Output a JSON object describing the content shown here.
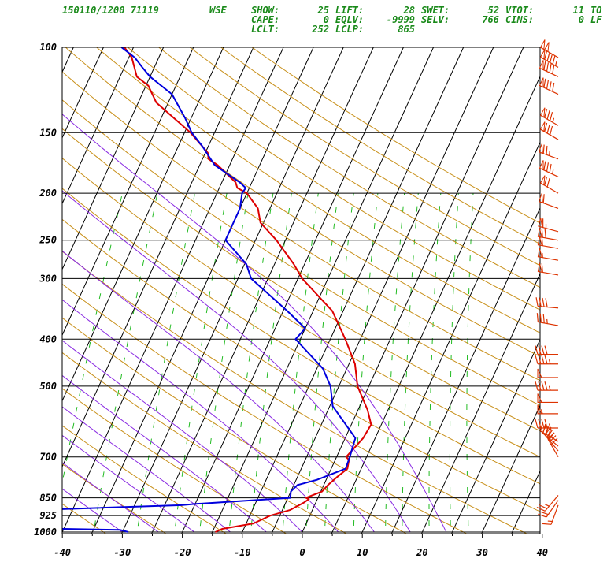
{
  "header": {
    "station_line": "150110/1200 71119",
    "station_id": "WSE",
    "indices": [
      [
        "SHOW:",
        "25",
        "LIFT:",
        "28",
        "SWET:",
        "52",
        "VTOT:",
        "11",
        "TO"
      ],
      [
        "CAPE:",
        "0",
        "EQLV:",
        "-9999",
        "SELV:",
        "766",
        "CINS:",
        "0",
        "LF"
      ],
      [
        "LCLT:",
        "252",
        "LCLP:",
        "865",
        "",
        "",
        "",
        "",
        ""
      ]
    ]
  },
  "chart_data": {
    "type": "line",
    "subtype": "skew-T log-P sounding",
    "pressure_ticks": [
      100,
      150,
      200,
      250,
      300,
      400,
      500,
      700,
      850,
      925,
      1000
    ],
    "temperature_ticks": [
      -40,
      -30,
      -20,
      -10,
      0,
      10,
      20,
      30,
      40
    ],
    "xlim": [
      -40,
      40
    ],
    "ylim": [
      1000,
      100
    ],
    "colors": {
      "temperature": "#dd0000",
      "dewpoint": "#0000dd",
      "isotherm": "#000000",
      "dry_adiabat": "#c8901a",
      "moist_adiabat": "#8a2be2",
      "mixing_ratio": "#22bb22",
      "wind_barb": "#dd3300",
      "header": "#1a8a1a"
    },
    "series": [
      {
        "key": "temperature",
        "points": [
          [
            1000,
            -14.5
          ],
          [
            985,
            -13.6
          ],
          [
            960,
            -8.8
          ],
          [
            925,
            -6.6
          ],
          [
            900,
            -3.7
          ],
          [
            870,
            -2.0
          ],
          [
            855,
            -1.4
          ],
          [
            850,
            -2.0
          ],
          [
            825,
            0.2
          ],
          [
            800,
            0.7
          ],
          [
            770,
            1.6
          ],
          [
            740,
            2.7
          ],
          [
            710,
            2.3
          ],
          [
            700,
            1.6
          ],
          [
            640,
            3.0
          ],
          [
            600,
            3.3
          ],
          [
            560,
            1.6
          ],
          [
            500,
            -1.9
          ],
          [
            450,
            -4.0
          ],
          [
            400,
            -7.5
          ],
          [
            350,
            -11.8
          ],
          [
            300,
            -19.3
          ],
          [
            280,
            -21.8
          ],
          [
            250,
            -26.5
          ],
          [
            230,
            -30.5
          ],
          [
            215,
            -32.0
          ],
          [
            200,
            -35.0
          ],
          [
            195,
            -37.0
          ],
          [
            190,
            -37.7
          ],
          [
            175,
            -42.0
          ],
          [
            170,
            -44.0
          ],
          [
            165,
            -44.6
          ],
          [
            150,
            -49.0
          ],
          [
            130,
            -57.0
          ],
          [
            120,
            -59.6
          ],
          [
            115,
            -62.2
          ],
          [
            105,
            -64.5
          ],
          [
            100,
            -66.5
          ]
        ]
      },
      {
        "key": "dewpoint",
        "points": [
          [
            1000,
            -29.0
          ],
          [
            990,
            -30.5
          ],
          [
            985,
            -40.0
          ],
          [
            975,
            -51.0
          ],
          [
            965,
            -58.0
          ],
          [
            950,
            -55.0
          ],
          [
            920,
            -54.0
          ],
          [
            905,
            -51.4
          ],
          [
            880,
            -22.2
          ],
          [
            875,
            -19.9
          ],
          [
            850,
            -4.6
          ],
          [
            825,
            -5.0
          ],
          [
            800,
            -4.4
          ],
          [
            780,
            -1.5
          ],
          [
            740,
            2.4
          ],
          [
            700,
            2.2
          ],
          [
            640,
            1.7
          ],
          [
            550,
            -4.5
          ],
          [
            500,
            -6.4
          ],
          [
            460,
            -9.0
          ],
          [
            400,
            -15.8
          ],
          [
            380,
            -15.0
          ],
          [
            350,
            -19.3
          ],
          [
            300,
            -27.8
          ],
          [
            280,
            -29.7
          ],
          [
            250,
            -35.0
          ],
          [
            230,
            -35.0
          ],
          [
            215,
            -35.0
          ],
          [
            200,
            -35.8
          ],
          [
            195,
            -35.6
          ],
          [
            190,
            -37.0
          ],
          [
            175,
            -42.5
          ],
          [
            160,
            -46.0
          ],
          [
            150,
            -48.8
          ],
          [
            140,
            -51.0
          ],
          [
            125,
            -55.0
          ],
          [
            115,
            -60.0
          ],
          [
            110,
            -62.0
          ],
          [
            105,
            -64.0
          ],
          [
            100,
            -67.0
          ]
        ]
      }
    ],
    "dry_adiabats_K": [
      230,
      240,
      250,
      260,
      270,
      280,
      290,
      300,
      310,
      320,
      330,
      340,
      350,
      360,
      370,
      380,
      390,
      400,
      410,
      420,
      430,
      440
    ],
    "moist_adiabats_C": [
      -30,
      -24,
      -18,
      -12,
      -6,
      0,
      6,
      12,
      18,
      24
    ],
    "mixing_ratios_gkg": [
      0.1,
      0.2,
      0.4,
      0.7,
      1,
      1.5,
      2,
      3,
      4,
      5,
      7,
      10,
      12,
      16,
      20,
      24
    ],
    "wind_barbs": [
      {
        "p": 105,
        "dir": 300,
        "spd": 100
      },
      {
        "p": 110,
        "dir": 300,
        "spd": 95
      },
      {
        "p": 115,
        "dir": 295,
        "spd": 90
      },
      {
        "p": 125,
        "dir": 295,
        "spd": 90
      },
      {
        "p": 145,
        "dir": 300,
        "spd": 85
      },
      {
        "p": 155,
        "dir": 300,
        "spd": 80
      },
      {
        "p": 170,
        "dir": 290,
        "spd": 75
      },
      {
        "p": 185,
        "dir": 295,
        "spd": 85
      },
      {
        "p": 200,
        "dir": 300,
        "spd": 70
      },
      {
        "p": 215,
        "dir": 290,
        "spd": 60
      },
      {
        "p": 240,
        "dir": 285,
        "spd": 65
      },
      {
        "p": 250,
        "dir": 280,
        "spd": 70
      },
      {
        "p": 260,
        "dir": 280,
        "spd": 60
      },
      {
        "p": 275,
        "dir": 280,
        "spd": 55
      },
      {
        "p": 295,
        "dir": 280,
        "spd": 60
      },
      {
        "p": 345,
        "dir": 275,
        "spd": 40
      },
      {
        "p": 375,
        "dir": 280,
        "spd": 35
      },
      {
        "p": 430,
        "dir": 270,
        "spd": 40
      },
      {
        "p": 450,
        "dir": 270,
        "spd": 45
      },
      {
        "p": 480,
        "dir": 270,
        "spd": 50
      },
      {
        "p": 510,
        "dir": 270,
        "spd": 45
      },
      {
        "p": 540,
        "dir": 270,
        "spd": 50
      },
      {
        "p": 570,
        "dir": 270,
        "spd": 55
      },
      {
        "p": 610,
        "dir": 270,
        "spd": 45
      },
      {
        "p": 650,
        "dir": 300,
        "spd": 40
      },
      {
        "p": 665,
        "dir": 310,
        "spd": 35
      },
      {
        "p": 680,
        "dir": 320,
        "spd": 30
      },
      {
        "p": 700,
        "dir": 330,
        "spd": 30
      },
      {
        "p": 840,
        "dir": 220,
        "spd": 25
      },
      {
        "p": 860,
        "dir": 215,
        "spd": 20
      },
      {
        "p": 880,
        "dir": 200,
        "spd": 15
      }
    ]
  }
}
